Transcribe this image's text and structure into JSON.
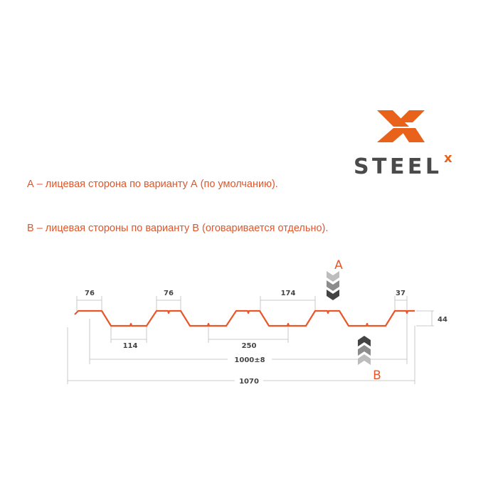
{
  "logo": {
    "brand": "STEEL",
    "superscript": "x",
    "colors": {
      "orange": "#e8621c",
      "gray": "#4a4a4a"
    }
  },
  "notes": [
    "А – лицевая сторона по варианту А (по умолчанию).",
    "В – лицевая стороны по варианту В (оговаривается отдельно)."
  ],
  "profile": {
    "color": "#e8562a",
    "dimensions": {
      "top_left": "76",
      "top_mid": "76",
      "pitch_top": "174",
      "edge": "37",
      "height": "44",
      "bottom": "114",
      "pitch_bottom": "250",
      "working_width": "1000±8",
      "full_width": "1070"
    },
    "side_a": "A",
    "side_b": "B"
  }
}
